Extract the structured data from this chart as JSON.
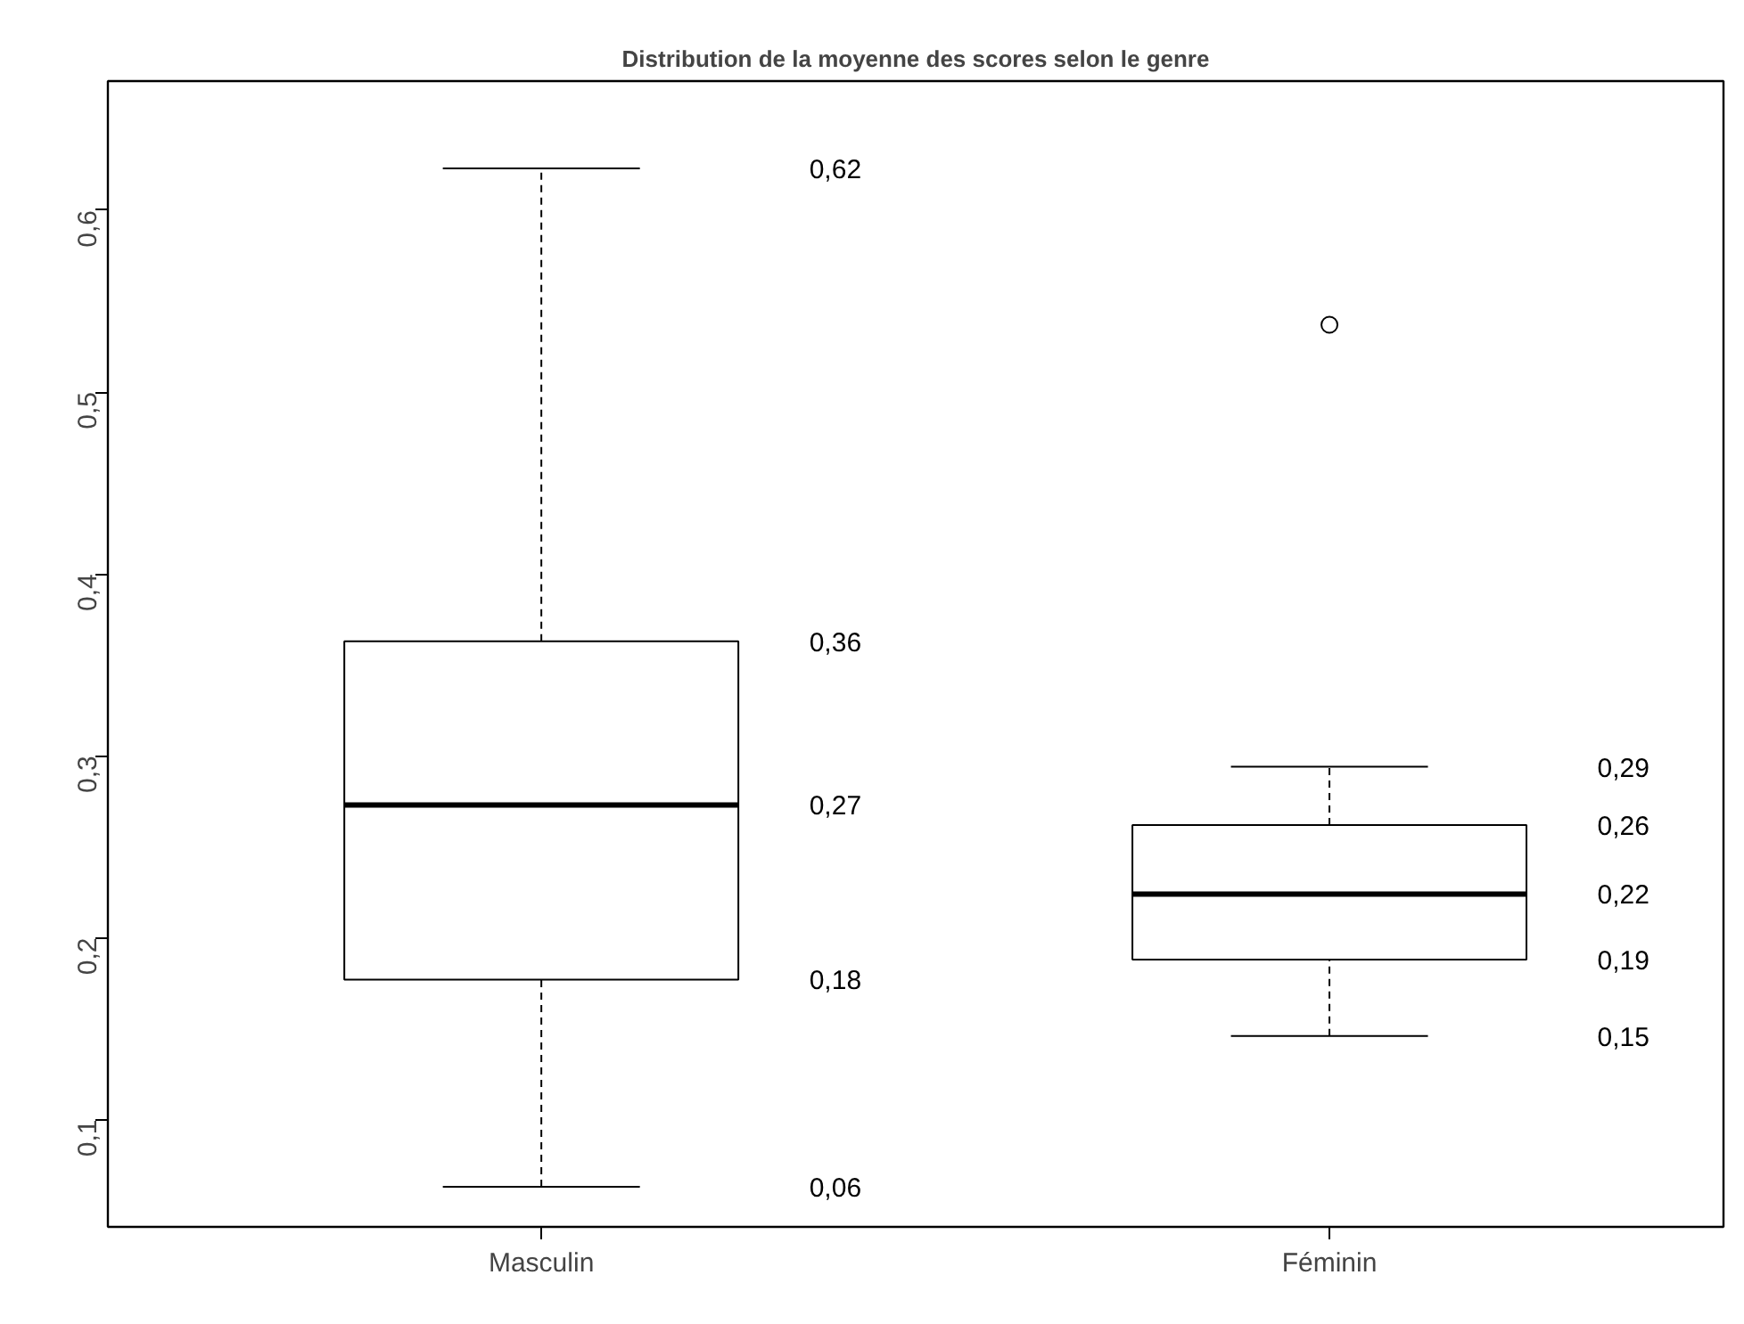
{
  "chart_data": {
    "type": "box",
    "title": "Distribution de la moyenne des scores selon le genre",
    "categories": [
      "Masculin",
      "Féminin"
    ],
    "boxes": [
      {
        "low": 0.063,
        "q1": 0.177,
        "median": 0.273,
        "q3": 0.363,
        "high": 0.623
      },
      {
        "low": 0.146,
        "q1": 0.188,
        "median": 0.224,
        "q3": 0.262,
        "high": 0.294,
        "outliers": [
          0.537
        ]
      }
    ],
    "ylim": [
      0.041,
      0.671
    ],
    "yticks": [
      {
        "value": 0.1,
        "label": "0,1"
      },
      {
        "value": 0.2,
        "label": "0,2"
      },
      {
        "value": 0.3,
        "label": "0,3"
      },
      {
        "value": 0.4,
        "label": "0,4"
      },
      {
        "value": 0.5,
        "label": "0,5"
      },
      {
        "value": 0.6,
        "label": "0,6"
      }
    ],
    "grid": false,
    "annotations": [
      "0,62",
      "0,36",
      "0,27",
      "0,18",
      "0,06",
      "0,29",
      "0,26",
      "0,22",
      "0,19",
      "0,15"
    ]
  }
}
